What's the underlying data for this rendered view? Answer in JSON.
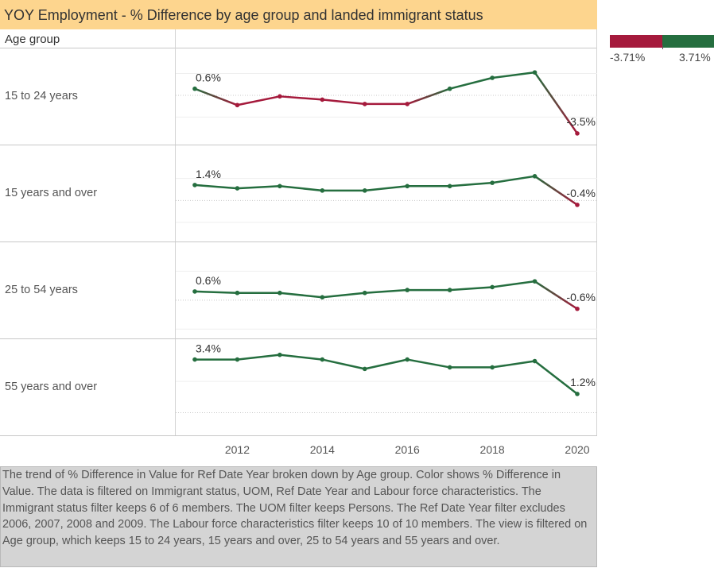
{
  "title": "YOY Employment - % Difference by age group and landed immigrant status",
  "header": {
    "column_label": "Age group"
  },
  "legend": {
    "min_label": "-3.71%",
    "max_label": "3.71%",
    "neg_color": "#a51a3c",
    "pos_color": "#256e3f"
  },
  "caption": "The trend of % Difference in Value for Ref Date Year broken down by Age group.  Color shows % Difference in Value. The data is filtered on Immigrant status, UOM, Ref Date Year and Labour force characteristics. The Immigrant status filter keeps 6 of 6 members. The UOM filter keeps Persons. The Ref Date Year filter excludes 2006, 2007, 2008 and 2009. The Labour force characteristics filter keeps 10 of 10 members. The view is filtered on Age group, which keeps 15 to 24 years, 15 years and over, 25 to 54 years and 55 years and over.",
  "chart_data": {
    "type": "line",
    "x": [
      2011,
      2012,
      2013,
      2014,
      2015,
      2016,
      2017,
      2018,
      2019,
      2020
    ],
    "xticks": [
      2012,
      2014,
      2016,
      2018,
      2020
    ],
    "color_range": [
      -3.71,
      3.71
    ],
    "series": [
      {
        "name": "15 to 24 years",
        "values": [
          0.6,
          -0.9,
          -0.1,
          -0.4,
          -0.8,
          -0.8,
          0.6,
          1.6,
          2.1,
          -3.5
        ],
        "start_label": "0.6%",
        "end_label": "-3.5%",
        "ylim": [
          -4.6,
          4.3
        ]
      },
      {
        "name": "15 years and over",
        "values": [
          1.4,
          1.1,
          1.3,
          0.9,
          0.9,
          1.3,
          1.3,
          1.6,
          2.2,
          -0.4
        ],
        "start_label": "1.4%",
        "end_label": "-0.4%",
        "ylim": [
          -3.8,
          5.0
        ]
      },
      {
        "name": "25 to 54 years",
        "values": [
          0.6,
          0.5,
          0.5,
          0.2,
          0.5,
          0.7,
          0.7,
          0.9,
          1.3,
          -0.6
        ],
        "start_label": "0.6%",
        "end_label": "-0.6%",
        "ylim": [
          -2.7,
          4.0
        ]
      },
      {
        "name": "55 years and over",
        "values": [
          3.4,
          3.4,
          3.7,
          3.4,
          2.8,
          3.4,
          2.9,
          2.9,
          3.3,
          1.2
        ],
        "start_label": "3.4%",
        "end_label": "1.2%",
        "ylim": [
          -1.5,
          4.7
        ]
      }
    ]
  }
}
